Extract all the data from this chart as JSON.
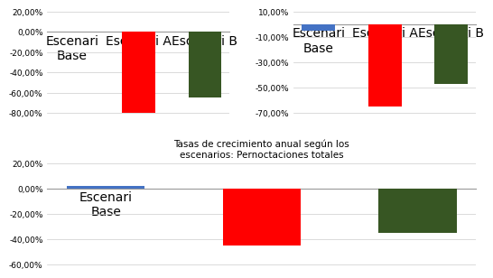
{
  "chart1": {
    "categories": [
      "Escenari\nBase",
      "Escenari A",
      "Escenari B"
    ],
    "values": [
      0.005,
      -0.8,
      -0.65
    ],
    "colors": [
      "#4472C4",
      "#FF0000",
      "#375623"
    ],
    "ylim": [
      -0.8,
      0.2
    ],
    "yticks": [
      0.2,
      0.0,
      -0.2,
      -0.4,
      -0.6,
      -0.8
    ]
  },
  "chart2": {
    "categories": [
      "Escenari\nBase",
      "Escenari A",
      "Escenari B"
    ],
    "values": [
      -0.05,
      -0.65,
      -0.47
    ],
    "colors": [
      "#4472C4",
      "#FF0000",
      "#375623"
    ],
    "ylim": [
      -0.7,
      0.1
    ],
    "yticks": [
      0.1,
      -0.1,
      -0.3,
      -0.5,
      -0.7
    ]
  },
  "chart3": {
    "title": "Tasas de crecimiento anual según los\nescenarios: Pernoctaciones totales",
    "categories": [
      "Escenari\nBase",
      "Escenari A",
      "Escenari B"
    ],
    "values": [
      0.02,
      -0.45,
      -0.35
    ],
    "colors": [
      "#4472C4",
      "#FF0000",
      "#375623"
    ],
    "ylim": [
      -0.6,
      0.2
    ],
    "yticks": [
      0.2,
      0.0,
      -0.2,
      -0.4,
      -0.6
    ]
  },
  "background_color": "#FFFFFF",
  "bar_width": 0.5,
  "label_fontsize": 6.5,
  "tick_fontsize": 6.5,
  "title_fontsize": 7.5
}
